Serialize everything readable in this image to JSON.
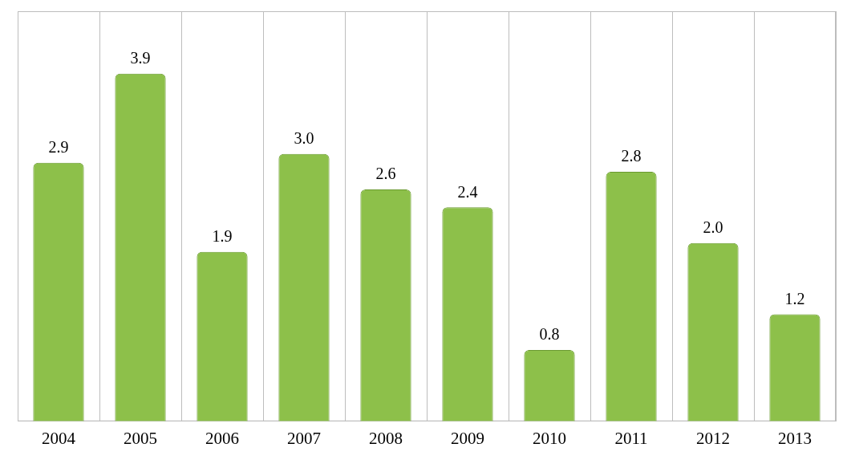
{
  "chart_data": {
    "type": "bar",
    "categories": [
      "2004",
      "2005",
      "2006",
      "2007",
      "2008",
      "2009",
      "2010",
      "2011",
      "2012",
      "2013"
    ],
    "values": [
      2.9,
      3.9,
      1.9,
      3.0,
      2.6,
      2.4,
      0.8,
      2.8,
      2.0,
      1.2
    ],
    "value_labels": [
      "2.9",
      "3.9",
      "1.9",
      "3.0",
      "2.6",
      "2.4",
      "0.8",
      "2.8",
      "2.0",
      "1.2"
    ],
    "color": "#8dc04a",
    "ylim": [
      0,
      4.6
    ],
    "grid": true,
    "data_labels": true,
    "tick_labels": "x"
  }
}
